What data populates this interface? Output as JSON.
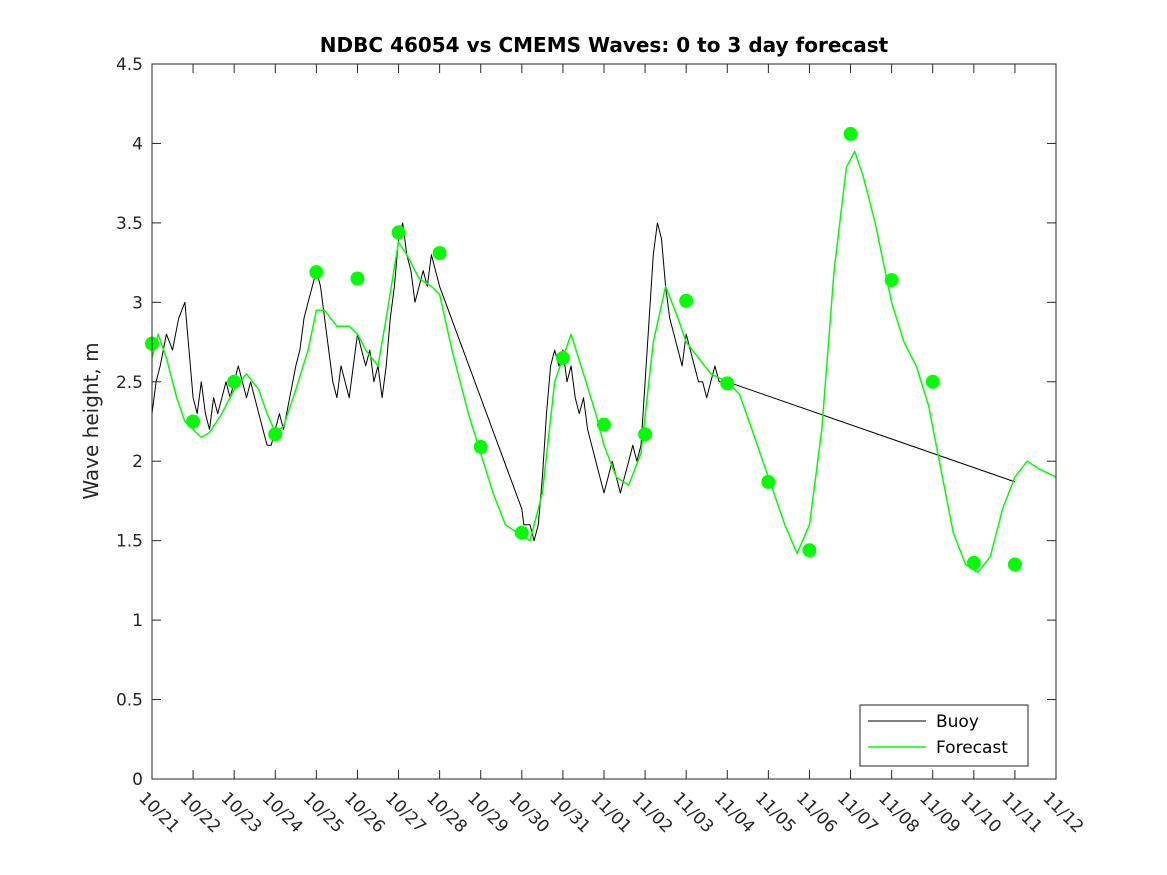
{
  "chart_data": {
    "type": "line",
    "title": "NDBC 46054 vs CMEMS Waves: 0 to 3 day forecast",
    "xlabel": "",
    "ylabel": "Wave height, m",
    "xlim": [
      0,
      22
    ],
    "ylim": [
      0,
      4.5
    ],
    "x_tick_values": [
      0,
      1,
      2,
      3,
      4,
      5,
      6,
      7,
      8,
      9,
      10,
      11,
      12,
      13,
      14,
      15,
      16,
      17,
      18,
      19,
      20,
      21,
      22
    ],
    "x_tick_labels": [
      "10/21",
      "10/22",
      "10/23",
      "10/24",
      "10/25",
      "10/26",
      "10/27",
      "10/28",
      "10/29",
      "10/30",
      "10/31",
      "11/01",
      "11/02",
      "11/03",
      "11/04",
      "11/05",
      "11/06",
      "11/07",
      "11/08",
      "11/09",
      "11/10",
      "11/11",
      "11/12"
    ],
    "y_tick_values": [
      0,
      0.5,
      1,
      1.5,
      2,
      2.5,
      3,
      3.5,
      4,
      4.5
    ],
    "y_tick_labels": [
      "0",
      "0.5",
      "1",
      "1.5",
      "2",
      "2.5",
      "3",
      "3.5",
      "4",
      "4.5"
    ],
    "x_units": "days since 10/21",
    "legend": {
      "position": "bottom-right",
      "entries": [
        {
          "label": "Buoy",
          "color": "#000000"
        },
        {
          "label": "Forecast",
          "color": "#00ff00"
        }
      ]
    },
    "series": [
      {
        "name": "Buoy",
        "color": "#000000",
        "points": [
          [
            0.0,
            2.3
          ],
          [
            0.1,
            2.5
          ],
          [
            0.2,
            2.6
          ],
          [
            0.35,
            2.8
          ],
          [
            0.5,
            2.7
          ],
          [
            0.65,
            2.9
          ],
          [
            0.8,
            3.0
          ],
          [
            0.9,
            2.7
          ],
          [
            1.0,
            2.4
          ],
          [
            1.1,
            2.3
          ],
          [
            1.2,
            2.5
          ],
          [
            1.3,
            2.3
          ],
          [
            1.4,
            2.2
          ],
          [
            1.5,
            2.4
          ],
          [
            1.6,
            2.3
          ],
          [
            1.7,
            2.4
          ],
          [
            1.8,
            2.5
          ],
          [
            1.9,
            2.4
          ],
          [
            2.0,
            2.5
          ],
          [
            2.1,
            2.6
          ],
          [
            2.2,
            2.5
          ],
          [
            2.3,
            2.4
          ],
          [
            2.4,
            2.5
          ],
          [
            2.5,
            2.4
          ],
          [
            2.6,
            2.3
          ],
          [
            2.7,
            2.2
          ],
          [
            2.8,
            2.1
          ],
          [
            2.9,
            2.1
          ],
          [
            3.0,
            2.2
          ],
          [
            3.1,
            2.3
          ],
          [
            3.2,
            2.2
          ],
          [
            3.35,
            2.4
          ],
          [
            3.5,
            2.6
          ],
          [
            3.6,
            2.7
          ],
          [
            3.7,
            2.9
          ],
          [
            3.8,
            3.0
          ],
          [
            3.9,
            3.1
          ],
          [
            4.0,
            3.2
          ],
          [
            4.1,
            3.1
          ],
          [
            4.2,
            2.9
          ],
          [
            4.3,
            2.7
          ],
          [
            4.4,
            2.5
          ],
          [
            4.5,
            2.4
          ],
          [
            4.6,
            2.6
          ],
          [
            4.7,
            2.5
          ],
          [
            4.8,
            2.4
          ],
          [
            4.9,
            2.6
          ],
          [
            5.0,
            2.8
          ],
          [
            5.1,
            2.7
          ],
          [
            5.2,
            2.6
          ],
          [
            5.3,
            2.7
          ],
          [
            5.4,
            2.5
          ],
          [
            5.5,
            2.6
          ],
          [
            5.6,
            2.4
          ],
          [
            5.7,
            2.6
          ],
          [
            5.8,
            2.9
          ],
          [
            5.9,
            3.1
          ],
          [
            6.0,
            3.4
          ],
          [
            6.1,
            3.5
          ],
          [
            6.2,
            3.3
          ],
          [
            6.3,
            3.2
          ],
          [
            6.4,
            3.0
          ],
          [
            6.5,
            3.1
          ],
          [
            6.6,
            3.2
          ],
          [
            6.7,
            3.1
          ],
          [
            6.8,
            3.3
          ],
          [
            6.9,
            3.2
          ],
          [
            7.0,
            3.1
          ],
          [
            9.0,
            1.7
          ],
          [
            9.05,
            1.6
          ],
          [
            9.2,
            1.6
          ],
          [
            9.3,
            1.5
          ],
          [
            9.4,
            1.6
          ],
          [
            9.5,
            1.9
          ],
          [
            9.6,
            2.3
          ],
          [
            9.7,
            2.6
          ],
          [
            9.8,
            2.7
          ],
          [
            9.9,
            2.6
          ],
          [
            10.0,
            2.7
          ],
          [
            10.1,
            2.5
          ],
          [
            10.2,
            2.6
          ],
          [
            10.3,
            2.4
          ],
          [
            10.4,
            2.3
          ],
          [
            10.5,
            2.4
          ],
          [
            10.6,
            2.2
          ],
          [
            10.7,
            2.1
          ],
          [
            10.8,
            2.0
          ],
          [
            10.9,
            1.9
          ],
          [
            11.0,
            1.8
          ],
          [
            11.1,
            1.9
          ],
          [
            11.2,
            2.0
          ],
          [
            11.3,
            1.9
          ],
          [
            11.4,
            1.8
          ],
          [
            11.5,
            1.9
          ],
          [
            11.6,
            2.0
          ],
          [
            11.7,
            2.1
          ],
          [
            11.8,
            2.0
          ],
          [
            11.9,
            2.1
          ],
          [
            12.0,
            2.5
          ],
          [
            12.1,
            2.9
          ],
          [
            12.2,
            3.3
          ],
          [
            12.3,
            3.5
          ],
          [
            12.4,
            3.4
          ],
          [
            12.5,
            3.1
          ],
          [
            12.6,
            2.9
          ],
          [
            12.7,
            2.8
          ],
          [
            12.8,
            2.7
          ],
          [
            12.9,
            2.6
          ],
          [
            13.0,
            2.8
          ],
          [
            13.1,
            2.7
          ],
          [
            13.2,
            2.6
          ],
          [
            13.3,
            2.5
          ],
          [
            13.4,
            2.5
          ],
          [
            13.5,
            2.4
          ],
          [
            13.6,
            2.5
          ],
          [
            13.7,
            2.6
          ],
          [
            13.8,
            2.5
          ],
          [
            13.9,
            2.5
          ],
          [
            14.0,
            2.5
          ],
          [
            21.0,
            1.87
          ]
        ]
      },
      {
        "name": "Forecast",
        "color": "#00ff00",
        "points": [
          [
            0.0,
            2.65
          ],
          [
            0.15,
            2.8
          ],
          [
            0.35,
            2.65
          ],
          [
            0.6,
            2.4
          ],
          [
            0.8,
            2.25
          ],
          [
            1.0,
            2.2
          ],
          [
            1.2,
            2.15
          ],
          [
            1.4,
            2.18
          ],
          [
            1.7,
            2.3
          ],
          [
            2.0,
            2.45
          ],
          [
            2.3,
            2.55
          ],
          [
            2.6,
            2.45
          ],
          [
            2.8,
            2.3
          ],
          [
            3.0,
            2.18
          ],
          [
            3.2,
            2.22
          ],
          [
            3.5,
            2.45
          ],
          [
            3.8,
            2.7
          ],
          [
            4.0,
            2.95
          ],
          [
            4.2,
            2.95
          ],
          [
            4.5,
            2.85
          ],
          [
            4.8,
            2.85
          ],
          [
            5.0,
            2.8
          ],
          [
            5.2,
            2.7
          ],
          [
            5.5,
            2.6
          ],
          [
            5.7,
            2.9
          ],
          [
            6.0,
            3.38
          ],
          [
            6.2,
            3.3
          ],
          [
            6.5,
            3.15
          ],
          [
            6.8,
            3.1
          ],
          [
            7.0,
            3.05
          ],
          [
            7.3,
            2.7
          ],
          [
            7.7,
            2.3
          ],
          [
            8.0,
            2.05
          ],
          [
            8.3,
            1.8
          ],
          [
            8.6,
            1.6
          ],
          [
            8.9,
            1.55
          ],
          [
            9.2,
            1.5
          ],
          [
            9.5,
            1.8
          ],
          [
            9.8,
            2.5
          ],
          [
            10.0,
            2.65
          ],
          [
            10.2,
            2.8
          ],
          [
            10.5,
            2.55
          ],
          [
            10.8,
            2.3
          ],
          [
            11.0,
            2.1
          ],
          [
            11.3,
            1.9
          ],
          [
            11.6,
            1.85
          ],
          [
            11.9,
            2.05
          ],
          [
            12.2,
            2.75
          ],
          [
            12.5,
            3.1
          ],
          [
            12.8,
            2.9
          ],
          [
            13.0,
            2.75
          ],
          [
            13.3,
            2.65
          ],
          [
            13.6,
            2.55
          ],
          [
            14.0,
            2.5
          ],
          [
            14.3,
            2.42
          ],
          [
            14.6,
            2.2
          ],
          [
            15.0,
            1.9
          ],
          [
            15.4,
            1.6
          ],
          [
            15.7,
            1.42
          ],
          [
            16.0,
            1.6
          ],
          [
            16.3,
            2.2
          ],
          [
            16.6,
            3.2
          ],
          [
            16.9,
            3.85
          ],
          [
            17.1,
            3.95
          ],
          [
            17.3,
            3.8
          ],
          [
            17.6,
            3.5
          ],
          [
            18.0,
            3.0
          ],
          [
            18.3,
            2.75
          ],
          [
            18.6,
            2.6
          ],
          [
            18.9,
            2.35
          ],
          [
            19.2,
            1.95
          ],
          [
            19.5,
            1.55
          ],
          [
            19.8,
            1.35
          ],
          [
            20.1,
            1.3
          ],
          [
            20.4,
            1.4
          ],
          [
            20.7,
            1.7
          ],
          [
            21.0,
            1.9
          ],
          [
            21.3,
            2.0
          ],
          [
            21.6,
            1.95
          ],
          [
            22.0,
            1.9
          ]
        ]
      },
      {
        "name": "Forecast init markers",
        "color": "#00ff00",
        "marker": "dot",
        "points": [
          [
            0,
            2.74
          ],
          [
            1,
            2.25
          ],
          [
            2,
            2.5
          ],
          [
            3,
            2.17
          ],
          [
            4,
            3.19
          ],
          [
            5,
            3.15
          ],
          [
            6,
            3.44
          ],
          [
            7,
            3.31
          ],
          [
            8,
            2.09
          ],
          [
            9,
            1.55
          ],
          [
            10,
            2.65
          ],
          [
            11,
            2.23
          ],
          [
            12,
            2.17
          ],
          [
            13,
            3.01
          ],
          [
            14,
            2.49
          ],
          [
            15,
            1.87
          ],
          [
            16,
            1.44
          ],
          [
            17,
            4.06
          ],
          [
            18,
            3.14
          ],
          [
            19,
            2.5
          ],
          [
            20,
            1.36
          ],
          [
            21,
            1.35
          ]
        ]
      }
    ]
  }
}
